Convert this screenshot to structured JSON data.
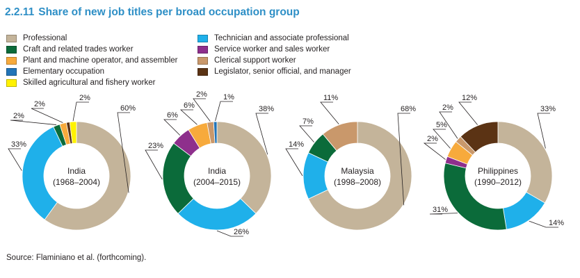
{
  "figure": {
    "number": "2.2.11",
    "title": "Share of new job titles per broad occupation group",
    "source": "Source: Flaminiano et al. (forthcoming)."
  },
  "colors": {
    "Professional": "#c4b49a",
    "Technician and associate professional": "#1fb0ea",
    "Craft and related trades worker": "#0b6b3a",
    "Service worker and sales worker": "#8e2f8c",
    "Plant and machine operator, and assembler": "#f7aa3c",
    "Clerical support worker": "#c9986b",
    "Elementary occupation": "#2174b8",
    "Legislator, senior official, and manager": "#5b3314",
    "Skilled agricultural and fishery worker": "#fff200"
  },
  "legend": [
    "Professional",
    "Craft and related trades worker",
    "Plant and machine operator, and assembler",
    "Elementary occupation",
    "Skilled agricultural and fishery worker",
    "Technician and associate professional",
    "Service worker and sales worker",
    "Clerical support worker",
    "Legislator, senior official, and manager"
  ],
  "chart_data": [
    {
      "type": "pie",
      "title_line1": "India",
      "title_line2": "(1968–2004)",
      "slices": [
        {
          "name": "Professional",
          "value": 60,
          "label": "60%"
        },
        {
          "name": "Technician and associate professional",
          "value": 33,
          "label": "33%"
        },
        {
          "name": "Craft and related trades worker",
          "value": 2,
          "label": "2%"
        },
        {
          "name": "Plant and machine operator, and assembler",
          "value": 2,
          "label": "2%"
        },
        {
          "name": "Legislator, senior official, and manager",
          "value": 1,
          "label": ""
        },
        {
          "name": "Skilled agricultural and fishery worker",
          "value": 2,
          "label": "2%"
        }
      ]
    },
    {
      "type": "pie",
      "title_line1": "India",
      "title_line2": "(2004–2015)",
      "slices": [
        {
          "name": "Professional",
          "value": 38,
          "label": "38%"
        },
        {
          "name": "Technician and associate professional",
          "value": 26,
          "label": "26%"
        },
        {
          "name": "Craft and related trades worker",
          "value": 23,
          "label": "23%"
        },
        {
          "name": "Service worker and sales worker",
          "value": 6,
          "label": "6%"
        },
        {
          "name": "Plant and machine operator, and assembler",
          "value": 6,
          "label": "6%"
        },
        {
          "name": "Clerical support worker",
          "value": 2,
          "label": "2%"
        },
        {
          "name": "Elementary occupation",
          "value": 1,
          "label": "1%"
        }
      ]
    },
    {
      "type": "pie",
      "title_line1": "Malaysia",
      "title_line2": "(1998–2008)",
      "slices": [
        {
          "name": "Professional",
          "value": 68,
          "label": "68%"
        },
        {
          "name": "Technician and associate professional",
          "value": 14,
          "label": "14%"
        },
        {
          "name": "Craft and related trades worker",
          "value": 7,
          "label": "7%"
        },
        {
          "name": "Clerical support worker",
          "value": 11,
          "label": "11%"
        }
      ]
    },
    {
      "type": "pie",
      "title_line1": "Philippines",
      "title_line2": "(1990–2012)",
      "slices": [
        {
          "name": "Professional",
          "value": 33,
          "label": "33%"
        },
        {
          "name": "Technician and associate professional",
          "value": 14,
          "label": "14%"
        },
        {
          "name": "Craft and related trades worker",
          "value": 31,
          "label": "31%"
        },
        {
          "name": "Service worker and sales worker",
          "value": 2,
          "label": "2%"
        },
        {
          "name": "Plant and machine operator, and assembler",
          "value": 5,
          "label": "5%"
        },
        {
          "name": "Clerical support worker",
          "value": 2,
          "label": "2%"
        },
        {
          "name": "Legislator, senior official, and manager",
          "value": 12,
          "label": "12%"
        }
      ]
    }
  ]
}
